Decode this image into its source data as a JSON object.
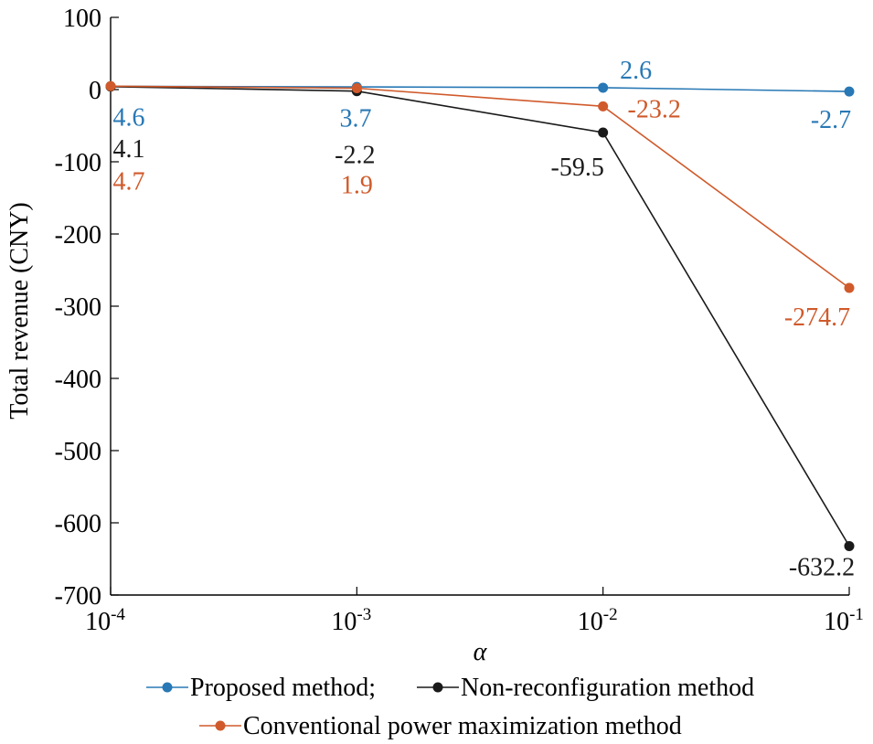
{
  "chart_data": {
    "type": "line",
    "title": "",
    "xlabel": "α",
    "ylabel": "Total revenue (CNY)",
    "x_scale": "log",
    "x": [
      0.0001,
      0.001,
      0.01,
      0.1
    ],
    "x_ticks": [
      {
        "base": "10",
        "exp": "-4"
      },
      {
        "base": "10",
        "exp": "-3"
      },
      {
        "base": "10",
        "exp": "-2"
      },
      {
        "base": "10",
        "exp": "-1"
      }
    ],
    "ylim": [
      -700,
      100
    ],
    "y_ticks": [
      100,
      0,
      -100,
      -200,
      -300,
      -400,
      -500,
      -600,
      -700
    ],
    "y_tick_labels": [
      "100",
      "0",
      "-100",
      "-200",
      "-300",
      "-400",
      "-500",
      "-600",
      "-700"
    ],
    "grid": false,
    "legend_position": "bottom",
    "series": [
      {
        "name": "Proposed method;",
        "color": "#2878b5",
        "values": [
          4.6,
          3.7,
          2.6,
          -2.7
        ],
        "labels": [
          "4.6",
          "3.7",
          "2.6",
          "-2.7"
        ]
      },
      {
        "name": "Non-reconfiguration method",
        "color": "#1a1a1a",
        "values": [
          4.1,
          -2.2,
          -59.5,
          -632.2
        ],
        "labels": [
          "4.1",
          "-2.2",
          "-59.5",
          "-632.2"
        ]
      },
      {
        "name": "Conventional power maximization method",
        "color": "#d05a2b",
        "values": [
          4.7,
          1.9,
          -23.2,
          -274.7
        ],
        "labels": [
          "4.7",
          "1.9",
          "-23.2",
          "-274.7"
        ]
      }
    ]
  }
}
